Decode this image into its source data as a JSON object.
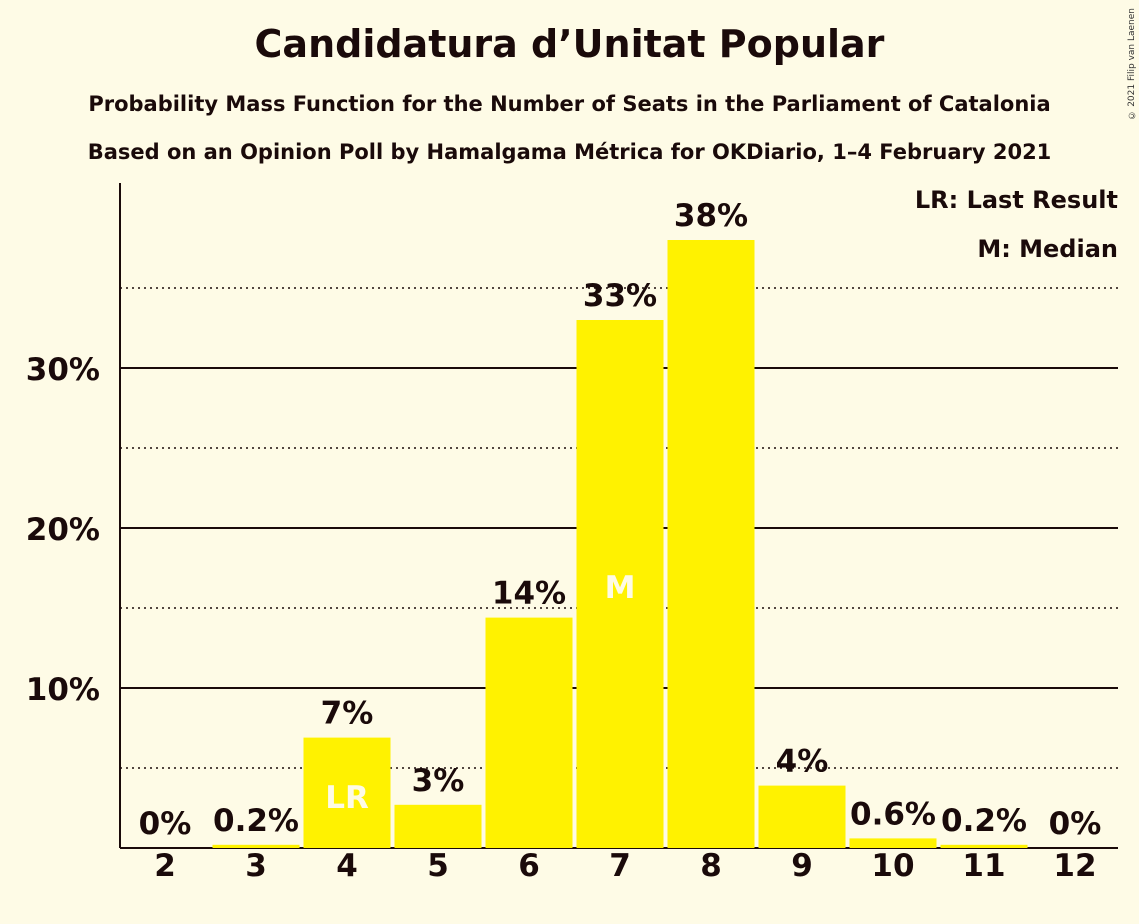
{
  "title": "Candidatura d’Unitat Popular",
  "subtitle": "Probability Mass Function for the Number of Seats in the Parliament of Catalonia",
  "subtitle2": "Based on an Opinion Poll by Hamalgama Métrica for OKDiario, 1–4 February 2021",
  "copyright": "© 2021 Filip van Laenen",
  "legend": {
    "last_result": "LR: Last Result",
    "median": "M: Median"
  },
  "colors": {
    "bar": "#FFF200",
    "background": "#FEFBE6",
    "text": "#1a0a0a",
    "marker_text": "#FEFBE6"
  },
  "chart_data": {
    "type": "bar",
    "categories": [
      "2",
      "3",
      "4",
      "5",
      "6",
      "7",
      "8",
      "9",
      "10",
      "11",
      "12"
    ],
    "values": [
      0,
      0.2,
      6.9,
      2.7,
      14.4,
      33.0,
      38.0,
      3.9,
      0.6,
      0.2,
      0
    ],
    "value_labels": [
      "0%",
      "0.2%",
      "7%",
      "3%",
      "14%",
      "33%",
      "38%",
      "4%",
      "0.6%",
      "0.2%",
      "0%"
    ],
    "markers": {
      "4": "LR",
      "7": "M"
    },
    "yticks": [
      10,
      20,
      30
    ],
    "ytick_labels": [
      "10%",
      "20%",
      "30%"
    ],
    "ylim": [
      0,
      41.5
    ],
    "grid": "solid at 10% steps, dotted at 5% steps",
    "legend_position": "top-right"
  }
}
